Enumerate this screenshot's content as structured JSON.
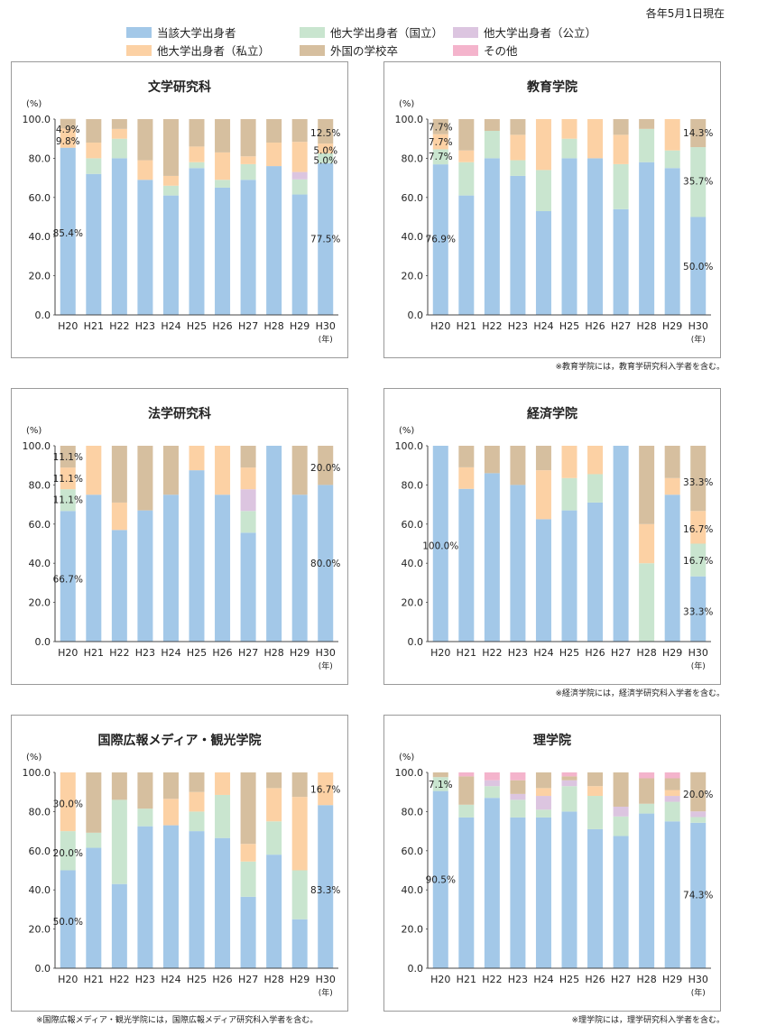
{
  "note_date": "各年5月1日現在",
  "colors": {
    "tougai": "#a3c8e8",
    "kokuritsu": "#c9e5cf",
    "kouritsu": "#dcc5e0",
    "shiritsu": "#fcd1a4",
    "gaikoku": "#d6bf9f",
    "sonota": "#f4b4cc"
  },
  "legend": [
    {
      "key": "tougai",
      "label": "当該大学出身者"
    },
    {
      "key": "kokuritsu",
      "label": "他大学出身者（国立）"
    },
    {
      "key": "kouritsu",
      "label": "他大学出身者（公立）"
    },
    {
      "key": "shiritsu",
      "label": "他大学出身者（私立）"
    },
    {
      "key": "gaikoku",
      "label": "外国の学校卒"
    },
    {
      "key": "sonota",
      "label": "その他"
    }
  ],
  "axis": {
    "unit": "(%)",
    "yticks": [
      "100.0",
      "80.0",
      "60.0",
      "40.0",
      "20.0",
      "0.0"
    ],
    "xunit": "(年)"
  },
  "chart_data": [
    {
      "type": "bar",
      "stacked": true,
      "title": "文学研究科",
      "categories": [
        "H20",
        "H21",
        "H22",
        "H23",
        "H24",
        "H25",
        "H26",
        "H27",
        "H28",
        "H29",
        "H30"
      ],
      "ylim": [
        0,
        100
      ],
      "series": [
        {
          "key": "tougai",
          "values": [
            85.4,
            72,
            80,
            69,
            61,
            75,
            65,
            69,
            76,
            61.5,
            77.5
          ]
        },
        {
          "key": "kokuritsu",
          "values": [
            0,
            8,
            10,
            0,
            5,
            3,
            4,
            8,
            0,
            7.7,
            5.0
          ]
        },
        {
          "key": "kouritsu",
          "values": [
            0,
            0,
            0,
            0,
            0,
            0,
            0,
            0,
            0,
            3.8,
            0
          ]
        },
        {
          "key": "shiritsu",
          "values": [
            9.8,
            8,
            5,
            10,
            5,
            8,
            14,
            4,
            12,
            15.4,
            5.0
          ]
        },
        {
          "key": "gaikoku",
          "values": [
            4.9,
            12,
            5,
            21,
            29,
            14,
            17,
            19,
            12,
            11.6,
            12.5
          ]
        },
        {
          "key": "sonota",
          "values": [
            0,
            0,
            0,
            0,
            0,
            0,
            0,
            0,
            0,
            0,
            0
          ]
        }
      ],
      "labels": [
        {
          "bar": 0,
          "y": 95,
          "text": "4.9%"
        },
        {
          "bar": 0,
          "y": 89,
          "text": "9.8%"
        },
        {
          "bar": 0,
          "y": 42,
          "text": "85.4%"
        },
        {
          "bar": 10,
          "y": 93,
          "text": "12.5%"
        },
        {
          "bar": 10,
          "y": 84,
          "text": "5.0%"
        },
        {
          "bar": 10,
          "y": 79,
          "text": "5.0%"
        },
        {
          "bar": 10,
          "y": 39,
          "text": "77.5%"
        }
      ],
      "footnote": ""
    },
    {
      "type": "bar",
      "stacked": true,
      "title": "教育学院",
      "categories": [
        "H20",
        "H21",
        "H22",
        "H23",
        "H24",
        "H25",
        "H26",
        "H27",
        "H28",
        "H29",
        "H30"
      ],
      "ylim": [
        0,
        100
      ],
      "series": [
        {
          "key": "tougai",
          "values": [
            76.9,
            61,
            80,
            71,
            53,
            80,
            80,
            54,
            78,
            75,
            50.0
          ]
        },
        {
          "key": "kokuritsu",
          "values": [
            7.7,
            17,
            14,
            8,
            21,
            10,
            0,
            23,
            17,
            9,
            35.7
          ]
        },
        {
          "key": "kouritsu",
          "values": [
            0,
            0,
            0,
            0,
            0,
            0,
            0,
            0,
            0,
            0,
            0
          ]
        },
        {
          "key": "shiritsu",
          "values": [
            7.7,
            6,
            0,
            13,
            26,
            10,
            20,
            15,
            0,
            16,
            0
          ]
        },
        {
          "key": "gaikoku",
          "values": [
            7.7,
            16,
            6,
            8,
            0,
            0,
            0,
            8,
            5,
            0,
            14.3
          ]
        },
        {
          "key": "sonota",
          "values": [
            0,
            0,
            0,
            0,
            0,
            0,
            0,
            0,
            0,
            0,
            0
          ]
        }
      ],
      "labels": [
        {
          "bar": 0,
          "y": 96,
          "text": "7.7%"
        },
        {
          "bar": 0,
          "y": 88.5,
          "text": "7.7%"
        },
        {
          "bar": 0,
          "y": 81,
          "text": "7.7%"
        },
        {
          "bar": 0,
          "y": 39,
          "text": "76.9%"
        },
        {
          "bar": 10,
          "y": 93,
          "text": "14.3%"
        },
        {
          "bar": 10,
          "y": 68.5,
          "text": "35.7%"
        },
        {
          "bar": 10,
          "y": 25,
          "text": "50.0%"
        }
      ],
      "footnote": "※教育学院には，教育学研究科入学者を含む。"
    },
    {
      "type": "bar",
      "stacked": true,
      "title": "法学研究科",
      "categories": [
        "H20",
        "H21",
        "H22",
        "H23",
        "H24",
        "H25",
        "H26",
        "H27",
        "H28",
        "H29",
        "H30"
      ],
      "ylim": [
        0,
        100
      ],
      "series": [
        {
          "key": "tougai",
          "values": [
            66.7,
            75,
            57,
            67,
            75,
            87.5,
            75,
            55.6,
            100,
            75,
            80.0
          ]
        },
        {
          "key": "kokuritsu",
          "values": [
            11.1,
            0,
            0,
            0,
            0,
            0,
            0,
            11.1,
            0,
            0,
            0
          ]
        },
        {
          "key": "kouritsu",
          "values": [
            0,
            0,
            0,
            0,
            0,
            0,
            0,
            11.1,
            0,
            0,
            0
          ]
        },
        {
          "key": "shiritsu",
          "values": [
            11.1,
            25,
            14,
            0,
            0,
            12.5,
            25,
            11.1,
            0,
            0,
            0
          ]
        },
        {
          "key": "gaikoku",
          "values": [
            11.1,
            0,
            29,
            33,
            25,
            0,
            0,
            11.1,
            0,
            25,
            20.0
          ]
        },
        {
          "key": "sonota",
          "values": [
            0,
            0,
            0,
            0,
            0,
            0,
            0,
            0,
            0,
            0,
            0
          ]
        }
      ],
      "labels": [
        {
          "bar": 0,
          "y": 94.5,
          "text": "11.1%"
        },
        {
          "bar": 0,
          "y": 83.5,
          "text": "11.1%"
        },
        {
          "bar": 0,
          "y": 72.5,
          "text": "11.1%"
        },
        {
          "bar": 0,
          "y": 32,
          "text": "66.7%"
        },
        {
          "bar": 10,
          "y": 89,
          "text": "20.0%"
        },
        {
          "bar": 10,
          "y": 40,
          "text": "80.0%"
        }
      ],
      "footnote": ""
    },
    {
      "type": "bar",
      "stacked": true,
      "title": "経済学院",
      "categories": [
        "H20",
        "H21",
        "H22",
        "H23",
        "H24",
        "H25",
        "H26",
        "H27",
        "H28",
        "H29",
        "H30"
      ],
      "ylim": [
        0,
        100
      ],
      "series": [
        {
          "key": "tougai",
          "values": [
            100,
            78,
            86,
            80,
            62.5,
            67,
            71,
            100,
            0,
            75,
            33.3
          ]
        },
        {
          "key": "kokuritsu",
          "values": [
            0,
            0,
            0,
            0,
            0,
            16.5,
            14.5,
            0,
            40,
            0,
            16.7
          ]
        },
        {
          "key": "kouritsu",
          "values": [
            0,
            0,
            0,
            0,
            0,
            0,
            0,
            0,
            0,
            0,
            0
          ]
        },
        {
          "key": "shiritsu",
          "values": [
            0,
            11,
            0,
            0,
            25,
            16.5,
            14.5,
            0,
            20,
            8.5,
            16.7
          ]
        },
        {
          "key": "gaikoku",
          "values": [
            0,
            11,
            14,
            20,
            12.5,
            0,
            0,
            0,
            40,
            16.5,
            33.3
          ]
        },
        {
          "key": "sonota",
          "values": [
            0,
            0,
            0,
            0,
            0,
            0,
            0,
            0,
            0,
            0,
            0
          ]
        }
      ],
      "labels": [
        {
          "bar": 0,
          "y": 49,
          "text": "100.0%"
        },
        {
          "bar": 10,
          "y": 81.5,
          "text": "33.3%"
        },
        {
          "bar": 10,
          "y": 57.5,
          "text": "16.7%"
        },
        {
          "bar": 10,
          "y": 41.5,
          "text": "16.7%"
        },
        {
          "bar": 10,
          "y": 15.5,
          "text": "33.3%"
        }
      ],
      "footnote": "※経済学院には，経済学研究科入学者を含む。"
    },
    {
      "type": "bar",
      "stacked": true,
      "title": "国際広報メディア・観光学院",
      "categories": [
        "H20",
        "H21",
        "H22",
        "H23",
        "H24",
        "H25",
        "H26",
        "H27",
        "H28",
        "H29",
        "H30"
      ],
      "ylim": [
        0,
        100
      ],
      "series": [
        {
          "key": "tougai",
          "values": [
            50.0,
            61.5,
            43,
            72.5,
            73,
            70,
            66.5,
            36.5,
            58,
            25,
            83.3
          ]
        },
        {
          "key": "kokuritsu",
          "values": [
            20.0,
            7.7,
            43,
            9,
            0,
            10,
            22,
            18,
            17,
            25,
            0
          ]
        },
        {
          "key": "kouritsu",
          "values": [
            0,
            0,
            0,
            0,
            0,
            0,
            0,
            0,
            0,
            0,
            0
          ]
        },
        {
          "key": "shiritsu",
          "values": [
            30.0,
            0,
            0,
            0,
            13.5,
            10,
            11.5,
            9,
            17,
            37.5,
            16.7
          ]
        },
        {
          "key": "gaikoku",
          "values": [
            0,
            30.8,
            14,
            18.5,
            13.5,
            10,
            0,
            36.5,
            8,
            12.5,
            0
          ]
        },
        {
          "key": "sonota",
          "values": [
            0,
            0,
            0,
            0,
            0,
            0,
            0,
            0,
            0,
            0,
            0
          ]
        }
      ],
      "labels": [
        {
          "bar": 0,
          "y": 84,
          "text": "30.0%"
        },
        {
          "bar": 0,
          "y": 59,
          "text": "20.0%"
        },
        {
          "bar": 0,
          "y": 24,
          "text": "50.0%"
        },
        {
          "bar": 10,
          "y": 91.5,
          "text": "16.7%"
        },
        {
          "bar": 10,
          "y": 40,
          "text": "83.3%"
        }
      ],
      "footnote": "※国際広報メディア・観光学院には，国際広報メディア研究科入学者を含む。"
    },
    {
      "type": "bar",
      "stacked": true,
      "title": "理学院",
      "categories": [
        "H20",
        "H21",
        "H22",
        "H23",
        "H24",
        "H25",
        "H26",
        "H27",
        "H28",
        "H29",
        "H30"
      ],
      "ylim": [
        0,
        100
      ],
      "series": [
        {
          "key": "tougai",
          "values": [
            90.5,
            77,
            87,
            77,
            77,
            80,
            71,
            67.5,
            79,
            75,
            74.3
          ]
        },
        {
          "key": "kokuritsu",
          "values": [
            7.1,
            6.5,
            6,
            9,
            4,
            13,
            17,
            10,
            5,
            10,
            2.9
          ]
        },
        {
          "key": "kouritsu",
          "values": [
            0,
            0,
            3,
            3,
            7,
            3,
            0,
            5,
            0,
            3,
            2.9
          ]
        },
        {
          "key": "shiritsu",
          "values": [
            0,
            0,
            0,
            0,
            4,
            0,
            5,
            0,
            0,
            3,
            0
          ]
        },
        {
          "key": "gaikoku",
          "values": [
            2.4,
            14.5,
            0,
            7,
            8,
            2,
            7,
            17.5,
            13,
            6,
            20.0
          ]
        },
        {
          "key": "sonota",
          "values": [
            0,
            2,
            4,
            4,
            0,
            2,
            0,
            0,
            3,
            3,
            0
          ]
        }
      ],
      "labels": [
        {
          "bar": 0,
          "y": 94,
          "text": "7.1%"
        },
        {
          "bar": 0,
          "y": 45.5,
          "text": "90.5%"
        },
        {
          "bar": 10,
          "y": 89,
          "text": "20.0%"
        },
        {
          "bar": 10,
          "y": 37.5,
          "text": "74.3%"
        }
      ],
      "footnote": "※理学院には，理学研究科入学者を含む。"
    }
  ]
}
